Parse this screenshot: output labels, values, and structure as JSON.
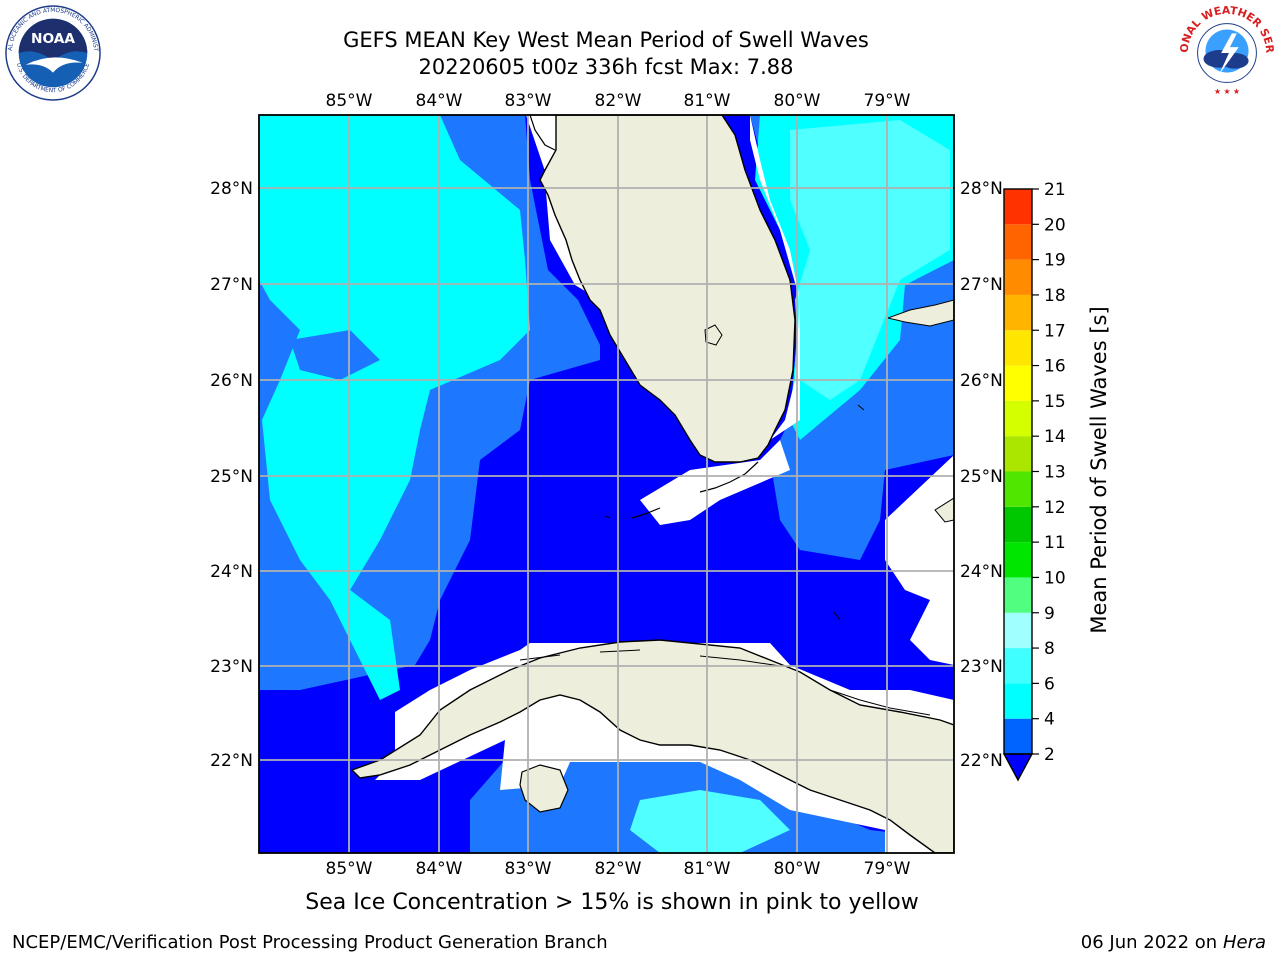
{
  "title": {
    "line1": "GEFS MEAN Key West Mean Period of Swell Waves",
    "line2": "20220605 t00z 336h fcst   Max: 7.88"
  },
  "logos": {
    "noaa_text": "NOAA",
    "noaa_ring": "NATIONAL OCEANIC AND ATMOSPHERIC ADMINISTRATION",
    "noaa_ring_bottom": "U.S. DEPARTMENT OF COMMERCE",
    "nws_ring": "NATIONAL WEATHER SERVICE"
  },
  "map": {
    "lon_labels": [
      "85°W",
      "84°W",
      "83°W",
      "82°W",
      "81°W",
      "80°W",
      "79°W"
    ],
    "lat_labels": [
      "28°N",
      "27°N",
      "26°N",
      "25°N",
      "24°N",
      "23°N",
      "22°N"
    ],
    "colors": {
      "land": "#eeeedd",
      "missing": "#ffffff",
      "bin_2_4": "#0000ff",
      "bin_4_6": "#1e78ff",
      "bin_6_8": "#00ffff",
      "bin_8_9": "#50ffff",
      "grid": "#b0b0b0",
      "coast": "#000000"
    }
  },
  "colorbar": {
    "label": "Mean Period of Swell Waves [s]",
    "ticks": [
      "2",
      "4",
      "6",
      "8",
      "9",
      "10",
      "11",
      "12",
      "13",
      "14",
      "15",
      "16",
      "17",
      "18",
      "19",
      "20",
      "21"
    ],
    "colors": [
      "#0064ff",
      "#00ffff",
      "#40ffff",
      "#a0ffff",
      "#50ff80",
      "#00e600",
      "#00c800",
      "#50e600",
      "#aae600",
      "#d4ff00",
      "#ffff00",
      "#ffe600",
      "#ffb400",
      "#ff8c00",
      "#ff6400",
      "#ff3200",
      "#ff0000"
    ],
    "under_color": "#0000ff"
  },
  "footer": {
    "ice_note": "Sea Ice Concentration > 15% is shown in pink to yellow",
    "credit": "NCEP/EMC/Verification Post Processing Product Generation Branch",
    "date": "06 Jun 2022 on",
    "host": "Hera"
  }
}
